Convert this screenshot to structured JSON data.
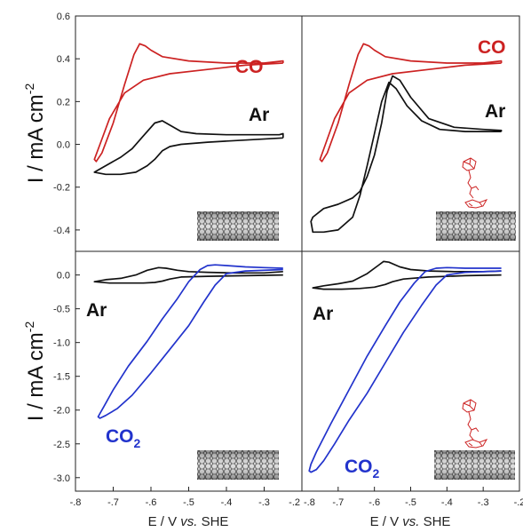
{
  "chart_data": [
    {
      "type": "line",
      "panel": "top-left",
      "xlim": [
        -0.8,
        -0.2
      ],
      "ylim": [
        -0.5,
        0.6
      ],
      "yticks": [
        -0.4,
        -0.2,
        0.0,
        0.2,
        0.4,
        0.6
      ],
      "ylabel": "I / mA cm",
      "ylabel_sup": "-2",
      "annotations": [
        "CO",
        "Ar"
      ],
      "series": [
        {
          "name": "CO",
          "color": "#cc2222",
          "x": [
            -0.25,
            -0.35,
            -0.45,
            -0.55,
            -0.62,
            -0.67,
            -0.71,
            -0.735,
            -0.75,
            -0.745,
            -0.73,
            -0.7,
            -0.67,
            -0.645,
            -0.63,
            -0.615,
            -0.6,
            -0.57,
            -0.5,
            -0.4,
            -0.3,
            -0.25,
            -0.25
          ],
          "y": [
            0.38,
            0.37,
            0.35,
            0.33,
            0.3,
            0.24,
            0.12,
            0.0,
            -0.07,
            -0.08,
            -0.04,
            0.1,
            0.28,
            0.42,
            0.47,
            0.46,
            0.44,
            0.41,
            0.39,
            0.38,
            0.38,
            0.39,
            0.38
          ]
        },
        {
          "name": "Ar",
          "color": "#111111",
          "x": [
            -0.25,
            -0.35,
            -0.45,
            -0.52,
            -0.55,
            -0.57,
            -0.59,
            -0.61,
            -0.64,
            -0.68,
            -0.72,
            -0.75,
            -0.72,
            -0.68,
            -0.65,
            -0.62,
            -0.59,
            -0.57,
            -0.55,
            -0.52,
            -0.48,
            -0.4,
            -0.32,
            -0.26,
            -0.25,
            -0.25
          ],
          "y": [
            0.03,
            0.02,
            0.01,
            0.0,
            -0.01,
            -0.03,
            -0.07,
            -0.1,
            -0.13,
            -0.14,
            -0.14,
            -0.13,
            -0.1,
            -0.06,
            -0.02,
            0.04,
            0.1,
            0.11,
            0.09,
            0.06,
            0.05,
            0.045,
            0.045,
            0.045,
            0.05,
            0.03
          ]
        }
      ]
    },
    {
      "type": "line",
      "panel": "top-right",
      "xlim": [
        -0.8,
        -0.2
      ],
      "ylim": [
        -0.5,
        0.6
      ],
      "annotations": [
        "CO",
        "Ar"
      ],
      "series": [
        {
          "name": "CO",
          "color": "#cc2222",
          "x": [
            -0.25,
            -0.35,
            -0.45,
            -0.55,
            -0.62,
            -0.67,
            -0.71,
            -0.735,
            -0.75,
            -0.745,
            -0.73,
            -0.7,
            -0.67,
            -0.645,
            -0.63,
            -0.615,
            -0.6,
            -0.57,
            -0.5,
            -0.4,
            -0.3,
            -0.25,
            -0.25
          ],
          "y": [
            0.38,
            0.37,
            0.35,
            0.33,
            0.3,
            0.24,
            0.12,
            0.0,
            -0.07,
            -0.08,
            -0.04,
            0.1,
            0.28,
            0.42,
            0.47,
            0.46,
            0.44,
            0.41,
            0.39,
            0.38,
            0.38,
            0.39,
            0.38
          ]
        },
        {
          "name": "Ar",
          "color": "#111111",
          "x": [
            -0.25,
            -0.35,
            -0.42,
            -0.47,
            -0.51,
            -0.54,
            -0.56,
            -0.58,
            -0.6,
            -0.62,
            -0.64,
            -0.66,
            -0.7,
            -0.74,
            -0.77,
            -0.775,
            -0.77,
            -0.74,
            -0.7,
            -0.66,
            -0.64,
            -0.62,
            -0.6,
            -0.58,
            -0.565,
            -0.55,
            -0.53,
            -0.5,
            -0.45,
            -0.38,
            -0.3,
            -0.25,
            -0.25
          ],
          "y": [
            0.06,
            0.06,
            0.07,
            0.11,
            0.18,
            0.26,
            0.29,
            0.2,
            0.05,
            -0.1,
            -0.24,
            -0.34,
            -0.4,
            -0.41,
            -0.41,
            -0.36,
            -0.34,
            -0.3,
            -0.28,
            -0.25,
            -0.22,
            -0.15,
            -0.05,
            0.1,
            0.25,
            0.32,
            0.3,
            0.22,
            0.12,
            0.08,
            0.07,
            0.065,
            0.06
          ]
        }
      ]
    },
    {
      "type": "line",
      "panel": "bottom-left",
      "xlim": [
        -0.8,
        -0.2
      ],
      "ylim": [
        -3.2,
        0.35
      ],
      "yticks": [
        -3.0,
        -2.5,
        -2.0,
        -1.5,
        -1.0,
        -0.5,
        0.0
      ],
      "xticks": [
        -0.8,
        -0.7,
        -0.6,
        -0.5,
        -0.4,
        -0.3,
        -0.2
      ],
      "xlabel_parts": [
        "E / V ",
        "vs.",
        " SHE"
      ],
      "ylabel": "I / mA cm",
      "ylabel_sup": "-2",
      "annotations": [
        "Ar",
        "CO",
        "2"
      ],
      "series": [
        {
          "name": "Ar",
          "color": "#111111",
          "x": [
            -0.25,
            -0.35,
            -0.45,
            -0.52,
            -0.55,
            -0.57,
            -0.59,
            -0.62,
            -0.66,
            -0.71,
            -0.75,
            -0.72,
            -0.68,
            -0.64,
            -0.61,
            -0.58,
            -0.56,
            -0.53,
            -0.5,
            -0.45,
            -0.38,
            -0.3,
            -0.25
          ],
          "y": [
            0.0,
            -0.01,
            -0.02,
            -0.03,
            -0.06,
            -0.09,
            -0.11,
            -0.12,
            -0.12,
            -0.12,
            -0.1,
            -0.07,
            -0.05,
            0.0,
            0.07,
            0.11,
            0.1,
            0.07,
            0.05,
            0.04,
            0.03,
            0.03,
            0.05
          ]
        },
        {
          "name": "CO2",
          "color": "#2233cc",
          "x": [
            -0.25,
            -0.35,
            -0.4,
            -0.43,
            -0.46,
            -0.5,
            -0.55,
            -0.6,
            -0.65,
            -0.69,
            -0.72,
            -0.735,
            -0.74,
            -0.735,
            -0.725,
            -0.7,
            -0.66,
            -0.61,
            -0.57,
            -0.53,
            -0.5,
            -0.47,
            -0.45,
            -0.43,
            -0.4,
            -0.35,
            -0.3,
            -0.25
          ],
          "y": [
            0.08,
            0.06,
            0.02,
            -0.15,
            -0.4,
            -0.75,
            -1.1,
            -1.45,
            -1.78,
            -1.98,
            -2.08,
            -2.12,
            -2.1,
            -2.05,
            -1.95,
            -1.7,
            -1.35,
            -0.98,
            -0.65,
            -0.35,
            -0.1,
            0.08,
            0.14,
            0.15,
            0.14,
            0.12,
            0.11,
            0.1
          ]
        }
      ]
    },
    {
      "type": "line",
      "panel": "bottom-right",
      "xlim": [
        -0.8,
        -0.2
      ],
      "ylim": [
        -3.2,
        0.35
      ],
      "xticks": [
        -0.8,
        -0.7,
        -0.6,
        -0.5,
        -0.4,
        -0.3,
        -0.2
      ],
      "xlabel_parts": [
        "E / V ",
        "vs.",
        " SHE"
      ],
      "annotations": [
        "Ar",
        "CO",
        "2"
      ],
      "series": [
        {
          "name": "Ar",
          "color": "#111111",
          "x": [
            -0.25,
            -0.35,
            -0.45,
            -0.52,
            -0.55,
            -0.57,
            -0.6,
            -0.64,
            -0.69,
            -0.74,
            -0.77,
            -0.74,
            -0.7,
            -0.66,
            -0.62,
            -0.59,
            -0.575,
            -0.56,
            -0.53,
            -0.5,
            -0.45,
            -0.38,
            -0.3,
            -0.25
          ],
          "y": [
            0.0,
            -0.01,
            -0.03,
            -0.06,
            -0.1,
            -0.14,
            -0.18,
            -0.2,
            -0.21,
            -0.21,
            -0.19,
            -0.16,
            -0.13,
            -0.09,
            0.02,
            0.14,
            0.2,
            0.19,
            0.12,
            0.08,
            0.06,
            0.05,
            0.05,
            0.06
          ]
        },
        {
          "name": "CO2",
          "color": "#2233cc",
          "x": [
            -0.25,
            -0.35,
            -0.4,
            -0.43,
            -0.47,
            -0.52,
            -0.57,
            -0.62,
            -0.67,
            -0.71,
            -0.74,
            -0.76,
            -0.775,
            -0.78,
            -0.775,
            -0.76,
            -0.72,
            -0.67,
            -0.62,
            -0.57,
            -0.53,
            -0.49,
            -0.46,
            -0.43,
            -0.4,
            -0.35,
            -0.3,
            -0.25
          ],
          "y": [
            0.06,
            0.04,
            0.0,
            -0.15,
            -0.45,
            -0.85,
            -1.3,
            -1.75,
            -2.15,
            -2.5,
            -2.75,
            -2.88,
            -2.92,
            -2.9,
            -2.8,
            -2.62,
            -2.2,
            -1.7,
            -1.2,
            -0.75,
            -0.4,
            -0.12,
            0.05,
            0.1,
            0.11,
            0.1,
            0.1,
            0.1
          ]
        }
      ]
    }
  ]
}
